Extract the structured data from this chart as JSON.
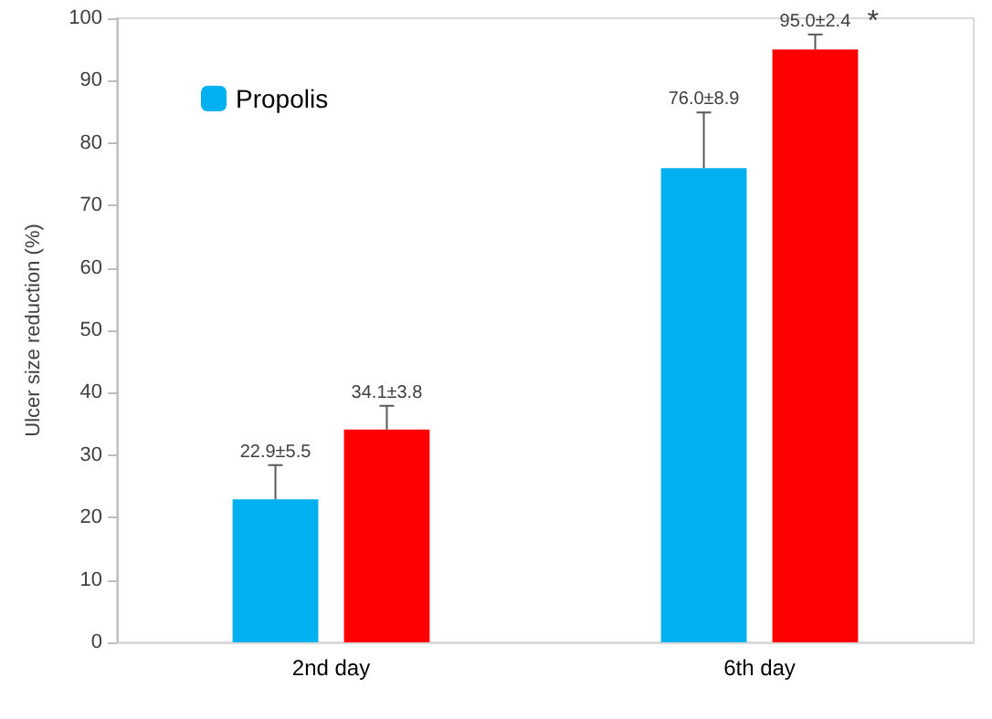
{
  "chart_data": {
    "type": "bar",
    "ylabel": "Ulcer size reduction (%)",
    "categories": [
      "2nd day",
      "6th day"
    ],
    "series": [
      {
        "name": "Propolis",
        "color": "#00b0f0",
        "values": [
          22.9,
          76.0
        ],
        "errors": [
          [
            22.9,
            28.4
          ],
          [
            76.0,
            84.9
          ]
        ],
        "value_labels": [
          "22.9±5.5",
          "76.0±8.9"
        ]
      },
      {
        "color": "#ff0000",
        "values": [
          34.1,
          95.0
        ],
        "errors": [
          [
            34.1,
            37.9
          ],
          [
            95.0,
            97.4
          ]
        ],
        "value_labels": [
          "34.1±3.8",
          "95.0±2.4"
        ]
      }
    ],
    "annotations": [
      "*"
    ],
    "ylim": [
      0,
      100
    ],
    "yticks": [
      0,
      10,
      20,
      30,
      40,
      50,
      60,
      70,
      80,
      90,
      100
    ],
    "grid": false,
    "legend": "top left"
  }
}
